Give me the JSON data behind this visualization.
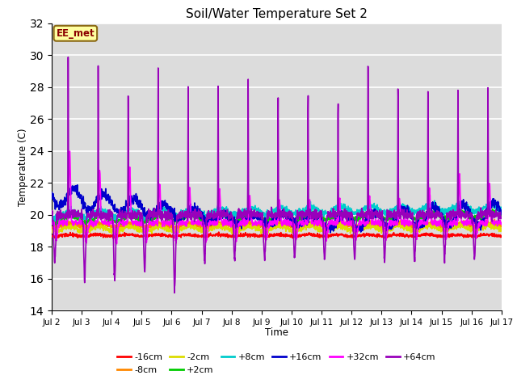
{
  "title": "Soil/Water Temperature Set 2",
  "xlabel": "Time",
  "ylabel": "Temperature (C)",
  "ylim": [
    14,
    32
  ],
  "yticks": [
    14,
    16,
    18,
    20,
    22,
    24,
    26,
    28,
    30,
    32
  ],
  "x_labels": [
    "Jul 2",
    "Jul 3",
    "Jul 4",
    "Jul 5",
    "Jul 6",
    "Jul 7",
    "Jul 8",
    "Jul 9",
    "Jul 10",
    "Jul 11",
    "Jul 12",
    "Jul 13",
    "Jul 14",
    "Jul 15",
    "Jul 16",
    "Jul 17"
  ],
  "annotation_text": "EE_met",
  "annotation_color": "#8B0000",
  "annotation_bg": "#FFFFA0",
  "annotation_border": "#8B6914",
  "series_labels": [
    "-16cm",
    "-8cm",
    "-2cm",
    "+2cm",
    "+8cm",
    "+16cm",
    "+32cm",
    "+64cm"
  ],
  "series_colors": [
    "#FF0000",
    "#FF8800",
    "#DDDD00",
    "#00CC00",
    "#00CCCC",
    "#0000CC",
    "#FF00FF",
    "#9900BB"
  ],
  "background_color": "#DCDCDC",
  "n_days": 15,
  "n_points_per_day": 144
}
